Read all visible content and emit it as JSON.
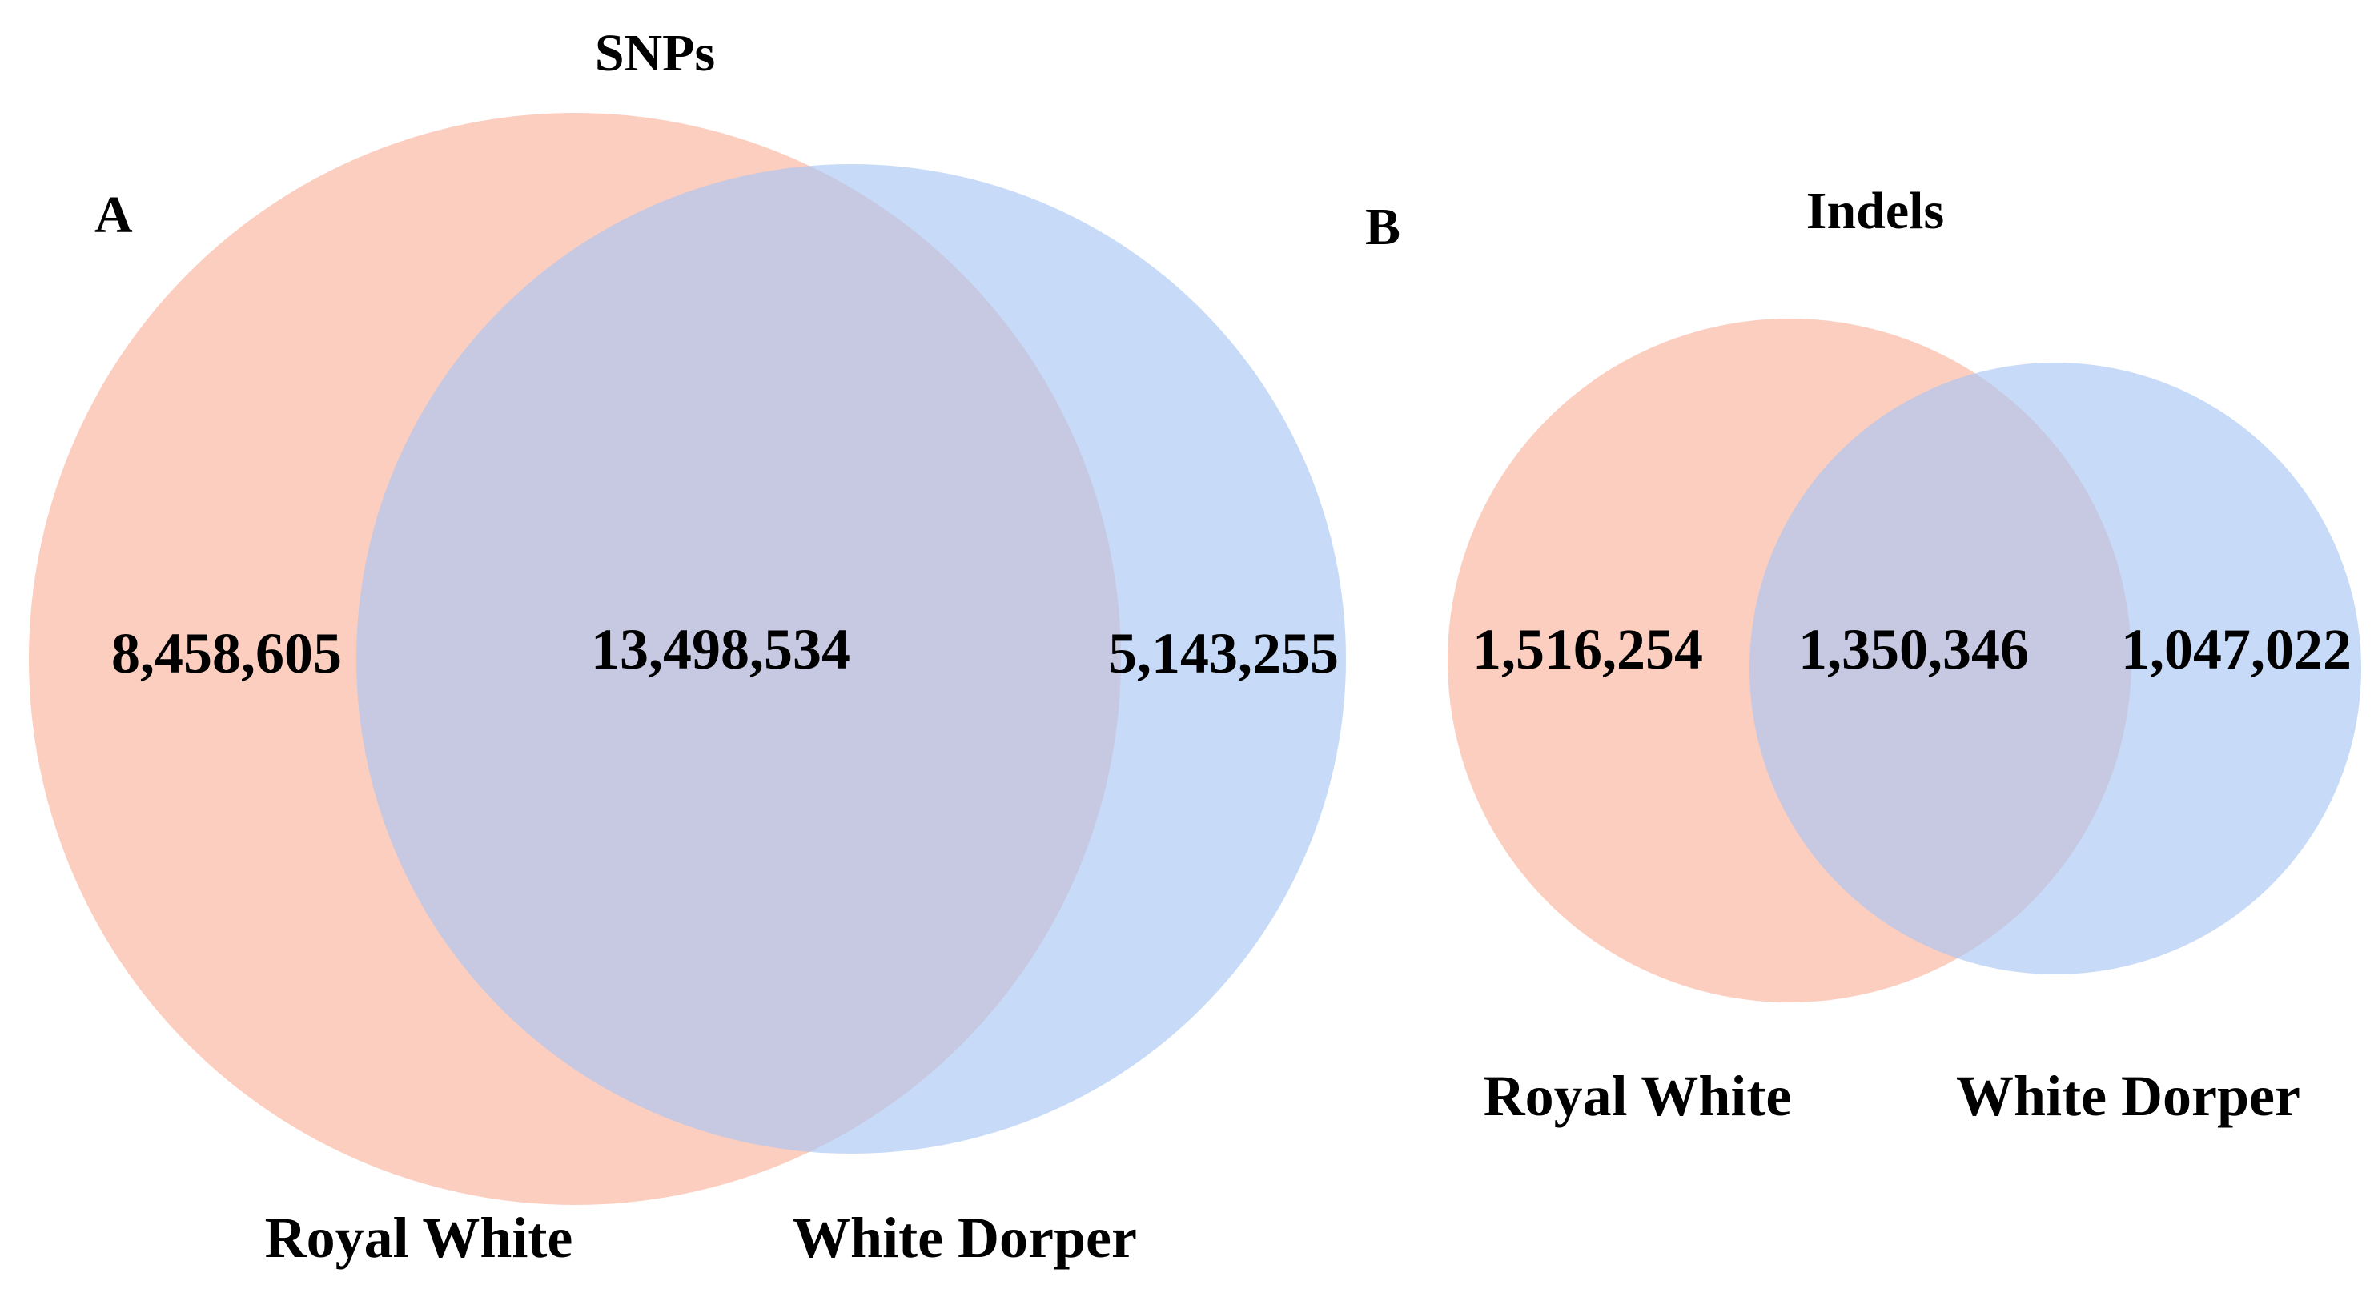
{
  "panels": {
    "a": {
      "letter": "A",
      "title": "SNPs",
      "set1": {
        "name": "Royal White",
        "only": "8,458,605",
        "color": "#f9b49c"
      },
      "set2": {
        "name": "White Dorper",
        "only": "5,143,255",
        "color": "#a9c6f2"
      },
      "shared": "13,498,534"
    },
    "b": {
      "letter": "B",
      "title": "Indels",
      "set1": {
        "name": "Royal White",
        "only": "1,516,254",
        "color": "#f9b49c"
      },
      "set2": {
        "name": "White Dorper",
        "only": "1,047,022",
        "color": "#a9c6f2"
      },
      "shared": "1,350,346"
    }
  }
}
